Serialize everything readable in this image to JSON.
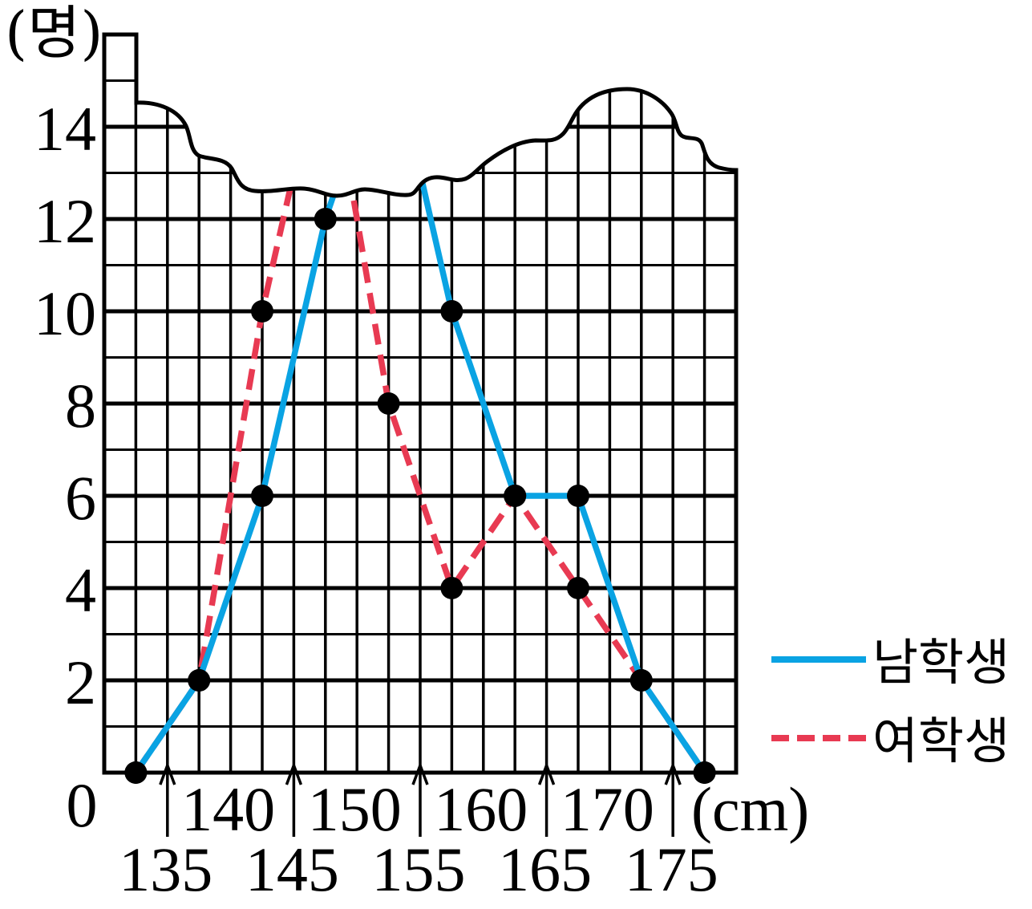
{
  "chart_data": {
    "type": "line",
    "title": "",
    "x": [
      132.5,
      137.5,
      142.5,
      147.5,
      152.5,
      157.5,
      162.5,
      167.5,
      172.5,
      177.5
    ],
    "series": [
      {
        "name": "남학생",
        "values": [
          0,
          2,
          6,
          12,
          null,
          10,
          6,
          6,
          2,
          0
        ],
        "color": "#0AA3E3",
        "dashed": false
      },
      {
        "name": "여학생",
        "values": [
          0,
          2,
          10,
          null,
          8,
          4,
          6,
          4,
          2,
          0
        ],
        "color": "#E83A52",
        "dashed": true
      }
    ],
    "xlabel": "(cm)",
    "ylabel": "(명)",
    "origin_label": "0",
    "x_ticks_upper": [
      140,
      150,
      160,
      170
    ],
    "x_ticks_lower": [
      135,
      145,
      155,
      165,
      175
    ],
    "y_ticks": [
      2,
      4,
      6,
      8,
      10,
      12,
      14
    ],
    "xlim": [
      130,
      180
    ],
    "ylim": [
      0,
      16
    ],
    "grid": true,
    "legend": "right"
  }
}
